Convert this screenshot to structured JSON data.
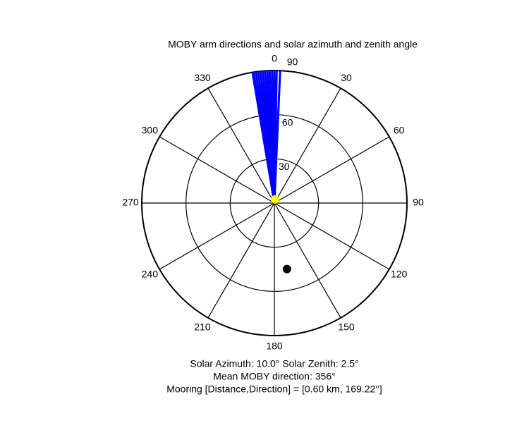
{
  "chart_data": {
    "type": "polar",
    "title": "MOBY arm directions and solar azimuth and zenith angle",
    "theta_ticks": [
      0,
      30,
      60,
      90,
      120,
      150,
      180,
      210,
      240,
      270,
      300,
      330
    ],
    "rlim": [
      0,
      90
    ],
    "rticks": [
      30,
      60,
      90
    ],
    "arms": {
      "color": "#0000ff",
      "theta": [
        350.5,
        351,
        352,
        353,
        354,
        355,
        356,
        357,
        358,
        359,
        0,
        1,
        2.5
      ],
      "r": [
        90,
        90,
        90,
        90,
        90,
        90,
        90,
        90,
        90,
        90,
        90,
        90,
        90
      ]
    },
    "sun": {
      "color": "#ffff00",
      "theta": 10.0,
      "r": 2.5
    },
    "mooring": {
      "color": "#000000",
      "theta": 169.22,
      "r": 45.6
    },
    "annotations": [
      "Solar Azimuth: 10.0° Solar Zenith: 2.5°",
      "Mean MOBY direction: 356°",
      "Mooring [Distance,Direction] = [0.60 km, 169.22°]"
    ]
  }
}
